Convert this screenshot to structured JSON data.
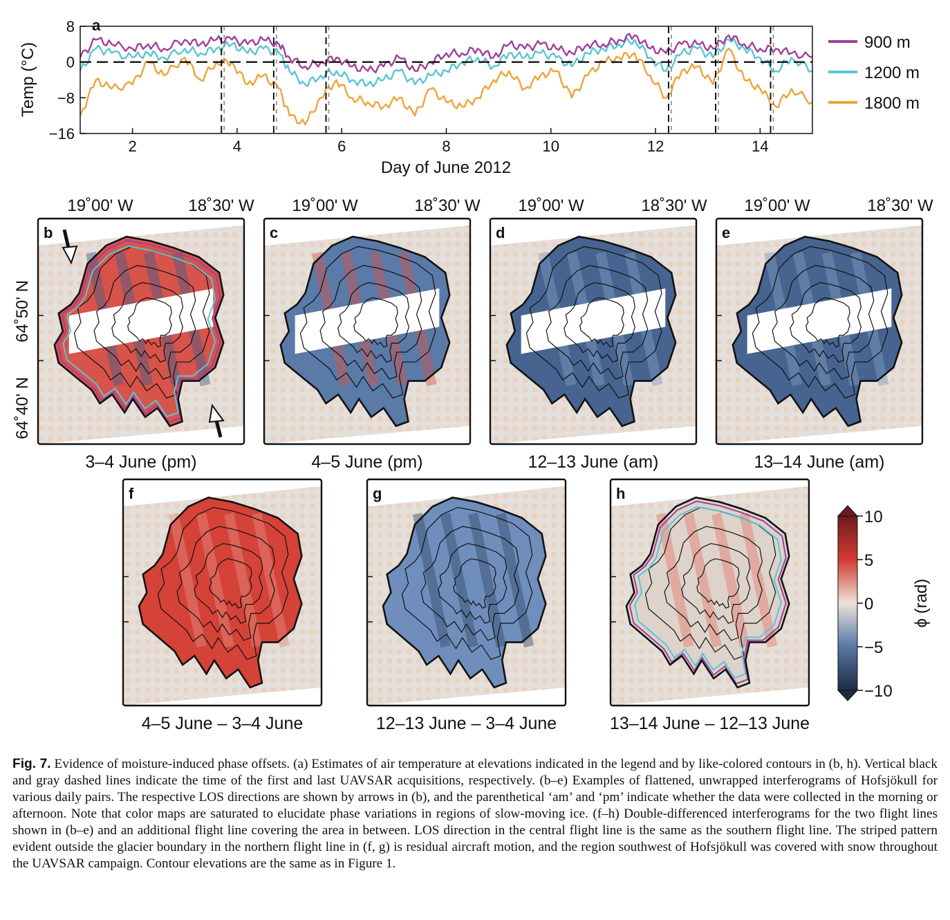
{
  "figure": {
    "panel_a": {
      "letter": "a",
      "ylabel": "Temp (°C)",
      "xlabel": "Day of June 2012",
      "y_ticks": [
        "8",
        "0",
        "−8",
        "−16"
      ],
      "x_ticks": [
        "2",
        "4",
        "6",
        "8",
        "10",
        "12",
        "14"
      ],
      "legend": [
        "900 m",
        "1200 m",
        "1800 m"
      ]
    },
    "lon_labels": [
      "19˚00' W",
      "18˚30' W"
    ],
    "lat_labels": [
      "64˚50' N",
      "64˚40' N"
    ],
    "maps": [
      {
        "letter": "b",
        "caption": "3–4 June (pm)"
      },
      {
        "letter": "c",
        "caption": "4–5 June (pm)"
      },
      {
        "letter": "d",
        "caption": "12–13 June (am)"
      },
      {
        "letter": "e",
        "caption": "13–14 June (am)"
      },
      {
        "letter": "f",
        "caption": "4–5 June – 3–4 June"
      },
      {
        "letter": "g",
        "caption": "12–13 June – 3–4 June"
      },
      {
        "letter": "h",
        "caption": "13–14 June – 12–13 June"
      }
    ],
    "colorbar": {
      "label": "ϕ (rad)",
      "ticks": [
        "10",
        "5",
        "0",
        "−5",
        "−10"
      ]
    }
  },
  "caption": {
    "label": "Fig. 7.",
    "text": "Evidence of moisture-induced phase offsets. (a) Estimates of air temperature at elevations indicated in the legend and by like-colored contours in (b, h). Vertical black and gray dashed lines indicate the time of the first and last UAVSAR acquisitions, respectively. (b–e) Examples of flattened, unwrapped interferograms of Hofsjökull for various daily pairs. The respective LOS directions are shown by arrows in (b), and the parenthetical ‘am’ and ‘pm’ indicate whether the data were collected in the morning or afternoon. Note that color maps are saturated to elucidate phase variations in regions of slow-moving ice. (f–h) Double-differenced interferograms for the two flight lines shown in (b–e) and an additional flight line covering the area in between. LOS direction in the central flight line is the same as the southern flight line. The striped pattern evident outside the glacier boundary in the northern flight line in (f, g) is residual aircraft motion, and the region southwest of Hofsjökull was covered with snow throughout the UAVSAR campaign. Contour elevations are the same as in Figure 1."
  },
  "chart_data": {
    "type": "line",
    "xlabel": "Day of June 2012",
    "ylabel": "Temp (°C)",
    "xlim": [
      1,
      15
    ],
    "ylim": [
      -16,
      8
    ],
    "x_ticks": [
      2,
      4,
      6,
      8,
      10,
      12,
      14
    ],
    "y_ticks": [
      8,
      0,
      -8,
      -16
    ],
    "reference_line": 0,
    "acquisition_days": [
      3.7,
      4.7,
      5.7,
      12.25,
      13.15,
      14.2
    ],
    "legend_position": "right",
    "series": [
      {
        "name": "900 m",
        "color": "#a0409a",
        "x": [
          1.0,
          1.3,
          1.6,
          2.0,
          2.3,
          2.6,
          3.0,
          3.3,
          3.6,
          3.9,
          4.2,
          4.5,
          4.8,
          5.0,
          5.3,
          5.6,
          5.9,
          6.2,
          6.5,
          6.8,
          7.1,
          7.4,
          7.7,
          8.0,
          8.3,
          8.6,
          8.9,
          9.2,
          9.5,
          9.8,
          10.1,
          10.4,
          10.7,
          11.0,
          11.3,
          11.6,
          11.9,
          12.2,
          12.5,
          12.8,
          13.1,
          13.4,
          13.7,
          14.0,
          14.3,
          14.6,
          15.0
        ],
        "values": [
          1,
          5,
          4,
          3,
          4,
          3,
          5,
          4,
          5,
          5,
          4,
          5,
          4,
          1,
          -1,
          0,
          1,
          -1,
          -2,
          -1,
          1,
          -2,
          0,
          2,
          2,
          3,
          1,
          4,
          3,
          4,
          3,
          2,
          4,
          4,
          5,
          6,
          3,
          2,
          4,
          4,
          3,
          6,
          4,
          3,
          3,
          2,
          1
        ]
      },
      {
        "name": "1200 m",
        "color": "#5bc4d6",
        "x": [
          1.0,
          1.3,
          1.6,
          2.0,
          2.3,
          2.6,
          3.0,
          3.3,
          3.6,
          3.9,
          4.2,
          4.5,
          4.8,
          5.0,
          5.3,
          5.6,
          5.9,
          6.2,
          6.5,
          6.8,
          7.1,
          7.4,
          7.7,
          8.0,
          8.3,
          8.6,
          8.9,
          9.2,
          9.5,
          9.8,
          10.1,
          10.4,
          10.7,
          11.0,
          11.3,
          11.6,
          11.9,
          12.2,
          12.5,
          12.8,
          13.1,
          13.4,
          13.7,
          14.0,
          14.3,
          14.6,
          15.0
        ],
        "values": [
          -2,
          3,
          2,
          1,
          2,
          1,
          3,
          2,
          3,
          4,
          2,
          3,
          2,
          -2,
          -5,
          -3,
          -2,
          -4,
          -5,
          -4,
          -2,
          -5,
          -3,
          -2,
          0,
          1,
          -1,
          2,
          1,
          2,
          1,
          -1,
          2,
          3,
          4,
          5,
          1,
          -2,
          2,
          3,
          1,
          5,
          3,
          1,
          -2,
          1,
          -2
        ]
      },
      {
        "name": "1800 m",
        "color": "#eda43a",
        "x": [
          1.0,
          1.3,
          1.6,
          2.0,
          2.3,
          2.6,
          3.0,
          3.3,
          3.6,
          3.9,
          4.2,
          4.5,
          4.8,
          5.0,
          5.3,
          5.6,
          5.9,
          6.2,
          6.5,
          6.8,
          7.1,
          7.4,
          7.7,
          8.0,
          8.3,
          8.6,
          8.9,
          9.2,
          9.5,
          9.8,
          10.1,
          10.4,
          10.7,
          11.0,
          11.3,
          11.6,
          11.9,
          12.2,
          12.5,
          12.8,
          13.1,
          13.4,
          13.7,
          14.0,
          14.3,
          14.6,
          15.0
        ],
        "values": [
          -12,
          -4,
          -6,
          -5,
          0,
          -3,
          1,
          -4,
          0,
          0,
          -5,
          -3,
          -6,
          -12,
          -14,
          -8,
          -4,
          -8,
          -9,
          -10,
          -8,
          -12,
          -6,
          -9,
          -10,
          -8,
          -4,
          -2,
          -6,
          -3,
          -2,
          -8,
          -3,
          0,
          1,
          2,
          -3,
          -8,
          -2,
          -1,
          -5,
          3,
          -4,
          -6,
          -10,
          -6,
          -9
        ]
      }
    ]
  }
}
